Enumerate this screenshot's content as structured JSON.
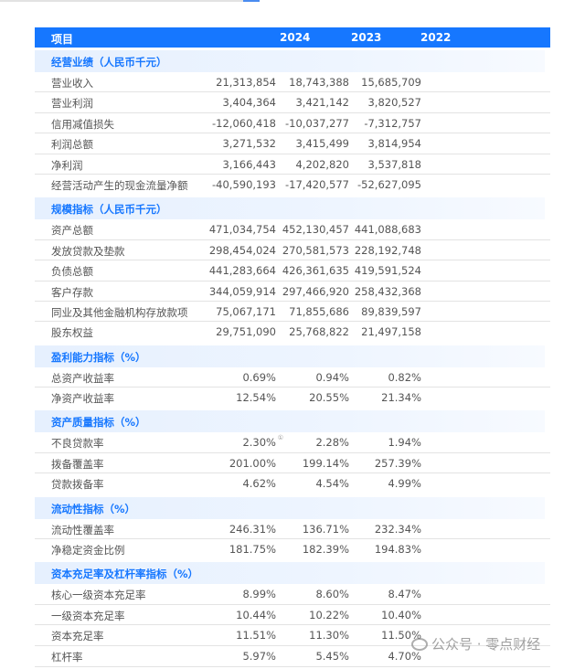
{
  "header": {
    "item": "项目",
    "years": [
      "2024",
      "2023",
      "2022"
    ]
  },
  "sections": [
    {
      "title": "经营业绩（人民币千元）",
      "rows": [
        {
          "label": "营业收入",
          "values": [
            "21,313,854",
            "18,743,388",
            "15,685,709"
          ]
        },
        {
          "label": "营业利润",
          "values": [
            "3,404,364",
            "3,421,142",
            "3,820,527"
          ]
        },
        {
          "label": "信用减值损失",
          "values": [
            "-12,060,418",
            "-10,037,277",
            "-7,312,757"
          ]
        },
        {
          "label": "利润总额",
          "values": [
            "3,271,532",
            "3,415,499",
            "3,814,954"
          ]
        },
        {
          "label": "净利润",
          "values": [
            "3,166,443",
            "4,202,820",
            "3,537,818"
          ]
        },
        {
          "label": "经营活动产生的现金流量净额",
          "values": [
            "-40,590,193",
            "-17,420,577",
            "-52,627,095"
          ]
        }
      ]
    },
    {
      "title": "规模指标（人民币千元）",
      "rows": [
        {
          "label": "资产总额",
          "values": [
            "471,034,754",
            "452,130,457",
            "441,088,683"
          ]
        },
        {
          "label": "发放贷款及垫款",
          "values": [
            "298,454,024",
            "270,581,573",
            "228,192,748"
          ]
        },
        {
          "label": "负债总额",
          "values": [
            "441,283,664",
            "426,361,635",
            "419,591,524"
          ]
        },
        {
          "label": "客户存款",
          "values": [
            "344,059,914",
            "297,466,920",
            "258,432,368"
          ]
        },
        {
          "label": "同业及其他金融机构存放款项",
          "values": [
            "75,067,171",
            "71,855,686",
            "89,839,597"
          ]
        },
        {
          "label": "股东权益",
          "values": [
            "29,751,090",
            "25,768,822",
            "21,497,158"
          ]
        }
      ]
    },
    {
      "title": "盈利能力指标（%）",
      "rows": [
        {
          "label": "总资产收益率",
          "values": [
            "0.69%",
            "0.94%",
            "0.82%"
          ]
        },
        {
          "label": "净资产收益率",
          "values": [
            "12.54%",
            "20.55%",
            "21.34%"
          ]
        }
      ]
    },
    {
      "title": "资产质量指标（%）",
      "rows": [
        {
          "label": "不良贷款率",
          "values": [
            "2.30%",
            "2.28%",
            "1.94%"
          ],
          "note": "①"
        },
        {
          "label": "拨备覆盖率",
          "values": [
            "201.00%",
            "199.14%",
            "257.39%"
          ]
        },
        {
          "label": "贷款拨备率",
          "values": [
            "4.62%",
            "4.54%",
            "4.99%"
          ]
        }
      ]
    },
    {
      "title": "流动性指标（%）",
      "rows": [
        {
          "label": "流动性覆盖率",
          "values": [
            "246.31%",
            "136.71%",
            "232.34%"
          ]
        },
        {
          "label": "净稳定资金比例",
          "values": [
            "181.75%",
            "182.39%",
            "194.83%"
          ]
        }
      ]
    },
    {
      "title": "资本充足率及杠杆率指标（%）",
      "rows": [
        {
          "label": "核心一级资本充足率",
          "values": [
            "8.99%",
            "8.60%",
            "8.47%"
          ]
        },
        {
          "label": "一级资本充足率",
          "values": [
            "10.44%",
            "10.22%",
            "10.40%"
          ]
        },
        {
          "label": "资本充足率",
          "values": [
            "11.51%",
            "11.30%",
            "11.50%"
          ]
        },
        {
          "label": "杠杆率",
          "values": [
            "5.97%",
            "5.45%",
            "4.70%"
          ]
        }
      ]
    }
  ],
  "watermark": {
    "text": "公众号 · 零点财经",
    "icon": "wechat-icon"
  }
}
